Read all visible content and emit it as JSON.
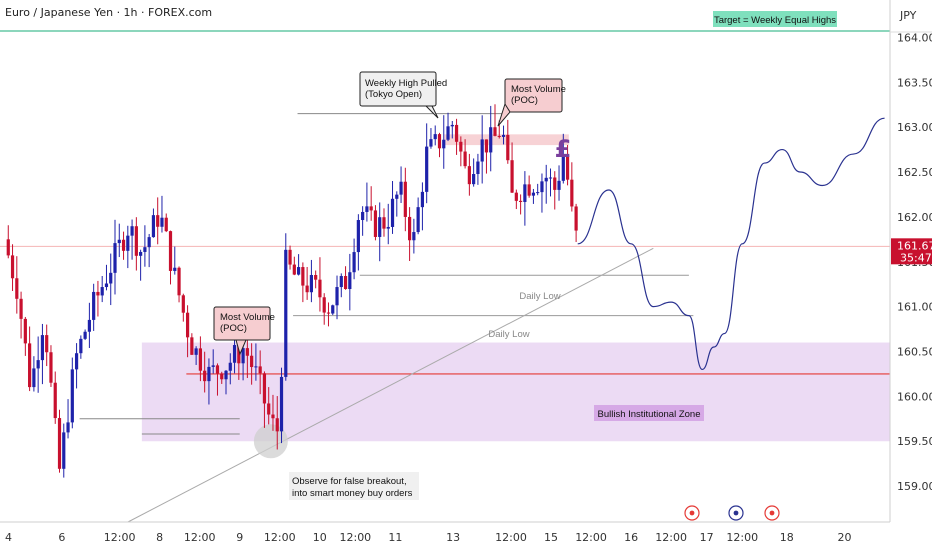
{
  "header": {
    "symbol_title": "Euro / Japanese Yen · 1h · FOREX.com",
    "currency_label": "JPY"
  },
  "price_tag": {
    "price": "161.672",
    "countdown": "35:47"
  },
  "colors": {
    "bull": "#1e22aa",
    "bear": "#c8102e",
    "zone_fill": "#e9d5f2",
    "target_line": "#67c9a5",
    "target_box": "#7fe0bd",
    "poc_box": "#f6cdd0",
    "projection": "#2a3290",
    "support_line": "#e53935"
  },
  "chart_data": {
    "type": "candlestick",
    "title": "Euro / Japanese Yen · 1h · FOREX.com",
    "y_axis": {
      "range": [
        158.6,
        164.35
      ],
      "ticks": [
        "164.000",
        "163.500",
        "163.000",
        "162.500",
        "162.000",
        "161.500",
        "161.000",
        "160.500",
        "160.000",
        "159.500",
        "159.000"
      ],
      "tick_values": [
        164.0,
        163.5,
        163.0,
        162.5,
        162.0,
        161.5,
        161.0,
        160.5,
        160.0,
        159.5,
        159.0
      ]
    },
    "x_axis": {
      "ticks": [
        {
          "label": "4",
          "pos": 0.05
        },
        {
          "label": "6",
          "pos": 0.65
        },
        {
          "label": "12:00",
          "pos": 1.3
        },
        {
          "label": "8",
          "pos": 1.75
        },
        {
          "label": "12:00",
          "pos": 2.2
        },
        {
          "label": "9",
          "pos": 2.65
        },
        {
          "label": "12:00",
          "pos": 3.1
        },
        {
          "label": "10",
          "pos": 3.55
        },
        {
          "label": "12:00",
          "pos": 3.95
        },
        {
          "label": "11",
          "pos": 4.4
        },
        {
          "label": "13",
          "pos": 5.05
        },
        {
          "label": "12:00",
          "pos": 5.7
        },
        {
          "label": "15",
          "pos": 6.15
        },
        {
          "label": "12:00",
          "pos": 6.6
        },
        {
          "label": "16",
          "pos": 7.05
        },
        {
          "label": "12:00",
          "pos": 7.5
        },
        {
          "label": "17",
          "pos": 7.9
        },
        {
          "label": "12:00",
          "pos": 8.3
        },
        {
          "label": "18",
          "pos": 8.8
        },
        {
          "label": "20",
          "pos": 9.45
        }
      ]
    },
    "price_path": [
      {
        "t": 0.0,
        "p": 161.75
      },
      {
        "t": 0.15,
        "p": 161.2
      },
      {
        "t": 0.3,
        "p": 160.1
      },
      {
        "t": 0.45,
        "p": 160.9
      },
      {
        "t": 0.62,
        "p": 159.15
      },
      {
        "t": 0.8,
        "p": 160.4
      },
      {
        "t": 1.0,
        "p": 161.0
      },
      {
        "t": 1.2,
        "p": 161.45
      },
      {
        "t": 1.4,
        "p": 161.9
      },
      {
        "t": 1.55,
        "p": 161.6
      },
      {
        "t": 1.75,
        "p": 162.05
      },
      {
        "t": 1.95,
        "p": 161.2
      },
      {
        "t": 2.1,
        "p": 160.6
      },
      {
        "t": 2.3,
        "p": 160.25
      },
      {
        "t": 2.5,
        "p": 160.35
      },
      {
        "t": 2.7,
        "p": 160.55
      },
      {
        "t": 2.85,
        "p": 160.2
      },
      {
        "t": 3.0,
        "p": 159.7
      },
      {
        "t": 3.1,
        "p": 159.6
      },
      {
        "t": 3.15,
        "p": 161.5
      },
      {
        "t": 3.3,
        "p": 161.3
      },
      {
        "t": 3.5,
        "p": 161.2
      },
      {
        "t": 3.65,
        "p": 161.0
      },
      {
        "t": 3.85,
        "p": 161.3
      },
      {
        "t": 4.0,
        "p": 162.1
      },
      {
        "t": 4.15,
        "p": 161.9
      },
      {
        "t": 4.3,
        "p": 161.95
      },
      {
        "t": 4.45,
        "p": 162.3
      },
      {
        "t": 4.6,
        "p": 161.7
      },
      {
        "t": 4.75,
        "p": 162.7
      },
      {
        "t": 4.9,
        "p": 162.85
      },
      {
        "t": 5.05,
        "p": 163.05
      },
      {
        "t": 5.2,
        "p": 162.45
      },
      {
        "t": 5.35,
        "p": 162.8
      },
      {
        "t": 5.5,
        "p": 162.85
      },
      {
        "t": 5.6,
        "p": 163.0
      },
      {
        "t": 5.7,
        "p": 162.2
      },
      {
        "t": 5.85,
        "p": 162.35
      },
      {
        "t": 6.0,
        "p": 162.4
      },
      {
        "t": 6.1,
        "p": 162.45
      },
      {
        "t": 6.2,
        "p": 162.3
      },
      {
        "t": 6.3,
        "p": 162.75
      },
      {
        "t": 6.37,
        "p": 162.1
      },
      {
        "t": 6.45,
        "p": 161.68
      }
    ],
    "projection_path": [
      {
        "t": 6.45,
        "p": 161.7
      },
      {
        "t": 6.8,
        "p": 162.3
      },
      {
        "t": 7.05,
        "p": 161.7
      },
      {
        "t": 7.3,
        "p": 161.0
      },
      {
        "t": 7.5,
        "p": 161.05
      },
      {
        "t": 7.7,
        "p": 160.9
      },
      {
        "t": 7.85,
        "p": 160.3
      },
      {
        "t": 7.98,
        "p": 160.55
      },
      {
        "t": 8.1,
        "p": 160.7
      },
      {
        "t": 8.3,
        "p": 161.7
      },
      {
        "t": 8.55,
        "p": 162.6
      },
      {
        "t": 8.75,
        "p": 162.75
      },
      {
        "t": 8.95,
        "p": 162.5
      },
      {
        "t": 9.2,
        "p": 162.35
      },
      {
        "t": 9.55,
        "p": 162.7
      },
      {
        "t": 9.9,
        "p": 163.1
      }
    ],
    "levels": {
      "target": 163.6,
      "current_price": 161.672,
      "support": 160.25,
      "zone_top": 160.6,
      "zone_bottom": 159.5,
      "weekly_high": 163.15,
      "daily_low_1": 161.35,
      "daily_low_2": 160.9,
      "trendline_start": 158.5,
      "trendline_end": 161.65
    }
  },
  "annotations": {
    "target": "Target = Weekly Equal Highs",
    "weekly_high_pulled": "Weekly High Pulled\n(Tokyo Open)",
    "most_volume_1": "Most Volume\n(POC)",
    "most_volume_2": "Most Volume\n(POC)",
    "daily_low_1": "Daily Low",
    "daily_low_2": "Daily Low",
    "bullish_zone": "Bullish Institutional Zone",
    "false_breakout": "Observe for false breakout,\ninto smart money buy orders",
    "pound_symbol": "£"
  }
}
